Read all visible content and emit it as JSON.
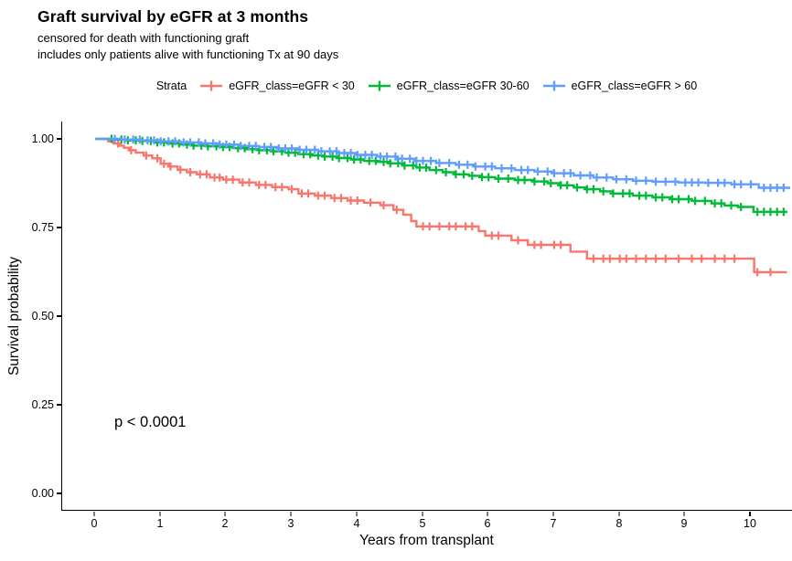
{
  "chart_data": {
    "type": "line",
    "subtype": "kaplan-meier-step-curves",
    "title": "Graft survival by eGFR at 3 months",
    "subtitle": [
      "censored for death with functioning graft",
      "includes only patients alive with functioning Tx at 90 days"
    ],
    "xlabel": "Years from transplant",
    "ylabel": "Survival probability",
    "legend_title": "Strata",
    "legend_position": "top",
    "grid": false,
    "xlim": [
      -0.5,
      10.65
    ],
    "ylim": [
      -0.05,
      1.05
    ],
    "x_ticks": [
      0,
      1,
      2,
      3,
      4,
      5,
      6,
      7,
      8,
      9,
      10
    ],
    "y_tick_labels": [
      "1.00",
      "0.75",
      "0.50",
      "0.25",
      "0.00"
    ],
    "y_tick_values": [
      1.0,
      0.75,
      0.5,
      0.25,
      0.0
    ],
    "annotation": {
      "text": "p < 0.0001",
      "x": 0.35,
      "y": 0.21
    },
    "series": [
      {
        "name": "eGFR_class=eGFR < 30",
        "color": "#F8766D",
        "end_time": 10.55,
        "points": [
          [
            0,
            1.0
          ],
          [
            0.2,
            0.993
          ],
          [
            0.28,
            0.987
          ],
          [
            0.36,
            0.981
          ],
          [
            0.44,
            0.975
          ],
          [
            0.52,
            0.968
          ],
          [
            0.62,
            0.961
          ],
          [
            0.74,
            0.953
          ],
          [
            0.87,
            0.945
          ],
          [
            1.0,
            0.93
          ],
          [
            1.12,
            0.922
          ],
          [
            1.26,
            0.913
          ],
          [
            1.4,
            0.906
          ],
          [
            1.55,
            0.9
          ],
          [
            1.75,
            0.891
          ],
          [
            1.95,
            0.885
          ],
          [
            2.2,
            0.877
          ],
          [
            2.45,
            0.87
          ],
          [
            2.7,
            0.864
          ],
          [
            2.95,
            0.858
          ],
          [
            3.1,
            0.846
          ],
          [
            3.35,
            0.84
          ],
          [
            3.6,
            0.833
          ],
          [
            3.85,
            0.826
          ],
          [
            4.1,
            0.82
          ],
          [
            4.35,
            0.813
          ],
          [
            4.55,
            0.8
          ],
          [
            4.7,
            0.786
          ],
          [
            4.82,
            0.768
          ],
          [
            4.9,
            0.753
          ],
          [
            5.85,
            0.74
          ],
          [
            5.95,
            0.727
          ],
          [
            6.35,
            0.714
          ],
          [
            6.6,
            0.701
          ],
          [
            7.25,
            0.682
          ],
          [
            7.5,
            0.662
          ],
          [
            10.05,
            0.624
          ]
        ],
        "censor_times": [
          0.35,
          0.55,
          0.78,
          0.95,
          1.05,
          1.15,
          1.3,
          1.45,
          1.6,
          1.7,
          1.82,
          1.9,
          2.0,
          2.1,
          2.25,
          2.35,
          2.5,
          2.6,
          2.75,
          2.85,
          3.0,
          3.15,
          3.25,
          3.4,
          3.5,
          3.65,
          3.75,
          3.9,
          4.0,
          4.2,
          4.4,
          4.6,
          5.0,
          5.1,
          5.25,
          5.4,
          5.5,
          5.65,
          5.75,
          6.05,
          6.15,
          6.45,
          6.7,
          6.8,
          7.0,
          7.1,
          7.6,
          7.75,
          7.85,
          8.0,
          8.1,
          8.25,
          8.4,
          8.55,
          8.7,
          8.9,
          9.1,
          9.25,
          9.45,
          9.6,
          9.75,
          10.1,
          10.3
        ]
      },
      {
        "name": "eGFR_class=eGFR 30-60",
        "color": "#00BA38",
        "end_time": 10.55,
        "points": [
          [
            0,
            1.0
          ],
          [
            0.3,
            0.998
          ],
          [
            0.5,
            0.996
          ],
          [
            0.7,
            0.994
          ],
          [
            0.9,
            0.99
          ],
          [
            1.1,
            0.987
          ],
          [
            1.3,
            0.984
          ],
          [
            1.5,
            0.981
          ],
          [
            1.7,
            0.979
          ],
          [
            1.9,
            0.977
          ],
          [
            2.1,
            0.974
          ],
          [
            2.3,
            0.971
          ],
          [
            2.5,
            0.968
          ],
          [
            2.7,
            0.965
          ],
          [
            2.9,
            0.961
          ],
          [
            3.1,
            0.957
          ],
          [
            3.3,
            0.953
          ],
          [
            3.5,
            0.95
          ],
          [
            3.7,
            0.946
          ],
          [
            3.9,
            0.942
          ],
          [
            4.1,
            0.938
          ],
          [
            4.3,
            0.935
          ],
          [
            4.5,
            0.931
          ],
          [
            4.7,
            0.925
          ],
          [
            4.9,
            0.919
          ],
          [
            5.1,
            0.912
          ],
          [
            5.3,
            0.906
          ],
          [
            5.5,
            0.9
          ],
          [
            5.7,
            0.896
          ],
          [
            5.9,
            0.892
          ],
          [
            6.1,
            0.888
          ],
          [
            6.4,
            0.884
          ],
          [
            6.7,
            0.88
          ],
          [
            6.9,
            0.875
          ],
          [
            7.1,
            0.869
          ],
          [
            7.3,
            0.863
          ],
          [
            7.5,
            0.858
          ],
          [
            7.7,
            0.852
          ],
          [
            7.9,
            0.846
          ],
          [
            8.2,
            0.84
          ],
          [
            8.5,
            0.835
          ],
          [
            8.8,
            0.83
          ],
          [
            9.1,
            0.825
          ],
          [
            9.4,
            0.818
          ],
          [
            9.6,
            0.812
          ],
          [
            9.8,
            0.808
          ],
          [
            10.04,
            0.794
          ]
        ],
        "censor_times": [
          0.25,
          0.4,
          0.5,
          0.62,
          0.72,
          0.85,
          0.95,
          1.05,
          1.18,
          1.28,
          1.4,
          1.5,
          1.62,
          1.72,
          1.85,
          1.95,
          2.05,
          2.18,
          2.28,
          2.4,
          2.5,
          2.62,
          2.72,
          2.85,
          2.95,
          3.05,
          3.18,
          3.28,
          3.4,
          3.5,
          3.62,
          3.72,
          3.85,
          3.95,
          4.05,
          4.18,
          4.28,
          4.4,
          4.5,
          4.62,
          4.72,
          4.85,
          4.95,
          5.05,
          5.2,
          5.35,
          5.5,
          5.62,
          5.75,
          5.9,
          6.0,
          6.15,
          6.3,
          6.45,
          6.55,
          6.7,
          6.85,
          6.95,
          7.1,
          7.2,
          7.35,
          7.5,
          7.6,
          7.75,
          7.9,
          8.05,
          8.15,
          8.3,
          8.4,
          8.55,
          8.65,
          8.8,
          8.9,
          9.05,
          9.15,
          9.3,
          9.45,
          9.55,
          9.7,
          9.85,
          10.1,
          10.2,
          10.3,
          10.4,
          10.5
        ]
      },
      {
        "name": "eGFR_class=eGFR > 60",
        "color": "#619CFF",
        "end_time": 10.6,
        "points": [
          [
            0,
            1.0
          ],
          [
            0.4,
            0.998
          ],
          [
            0.7,
            0.996
          ],
          [
            1.0,
            0.993
          ],
          [
            1.3,
            0.99
          ],
          [
            1.6,
            0.987
          ],
          [
            1.9,
            0.984
          ],
          [
            2.2,
            0.98
          ],
          [
            2.5,
            0.977
          ],
          [
            2.8,
            0.973
          ],
          [
            3.1,
            0.969
          ],
          [
            3.4,
            0.965
          ],
          [
            3.7,
            0.96
          ],
          [
            4.0,
            0.955
          ],
          [
            4.3,
            0.95
          ],
          [
            4.6,
            0.944
          ],
          [
            4.9,
            0.938
          ],
          [
            5.2,
            0.932
          ],
          [
            5.5,
            0.927
          ],
          [
            5.8,
            0.922
          ],
          [
            6.1,
            0.917
          ],
          [
            6.4,
            0.912
          ],
          [
            6.7,
            0.908
          ],
          [
            7.0,
            0.903
          ],
          [
            7.3,
            0.897
          ],
          [
            7.6,
            0.891
          ],
          [
            7.9,
            0.886
          ],
          [
            8.2,
            0.882
          ],
          [
            8.5,
            0.879
          ],
          [
            8.9,
            0.877
          ],
          [
            9.3,
            0.876
          ],
          [
            9.7,
            0.872
          ],
          [
            10.12,
            0.862
          ]
        ],
        "censor_times": [
          0.3,
          0.45,
          0.58,
          0.68,
          0.8,
          0.9,
          1.0,
          1.12,
          1.22,
          1.35,
          1.45,
          1.58,
          1.68,
          1.8,
          1.9,
          2.0,
          2.12,
          2.22,
          2.35,
          2.45,
          2.58,
          2.68,
          2.8,
          2.9,
          3.0,
          3.12,
          3.22,
          3.35,
          3.45,
          3.58,
          3.68,
          3.8,
          3.9,
          4.0,
          4.12,
          4.22,
          4.35,
          4.45,
          4.58,
          4.68,
          4.8,
          4.9,
          5.0,
          5.12,
          5.25,
          5.4,
          5.55,
          5.68,
          5.8,
          5.95,
          6.05,
          6.2,
          6.35,
          6.5,
          6.6,
          6.75,
          6.9,
          7.0,
          7.15,
          7.25,
          7.4,
          7.55,
          7.65,
          7.8,
          7.95,
          8.1,
          8.25,
          8.4,
          8.55,
          8.7,
          8.85,
          9.0,
          9.1,
          9.2,
          9.35,
          9.5,
          9.6,
          9.75,
          9.85,
          10.0,
          10.2,
          10.3,
          10.4,
          10.5
        ]
      }
    ]
  }
}
